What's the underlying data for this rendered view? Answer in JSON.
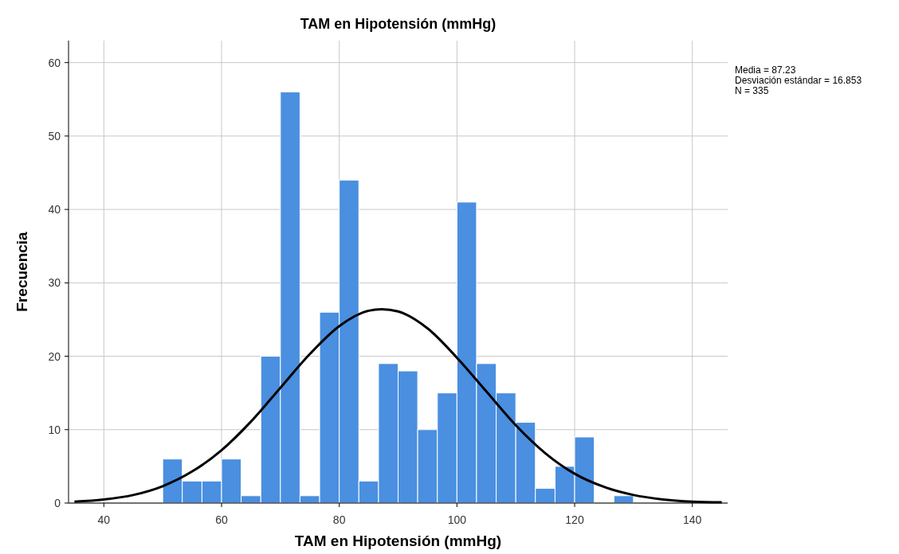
{
  "chart_data": {
    "type": "histogram",
    "title": "TAM en Hipotensión (mmHg)",
    "xlabel": "TAM en Hipotensión (mmHg)",
    "ylabel": "Frecuencia",
    "annotations": [
      "Media = 87.23",
      "Desviación estándar = 16.853",
      "N = 335"
    ],
    "xlim": [
      34,
      146
    ],
    "xticks": [
      40,
      60,
      80,
      100,
      120,
      140
    ],
    "ylim": [
      0,
      63
    ],
    "yticks": [
      0,
      10,
      20,
      30,
      40,
      50,
      60
    ],
    "grid": true,
    "series": [
      {
        "color": "#4a8fe0",
        "bins": [
          50,
          53.33,
          56.67,
          60,
          63.33,
          66.67,
          70,
          73.33,
          76.67,
          80,
          83.33,
          86.67,
          90,
          93.33,
          96.67,
          100,
          103.33,
          106.67,
          110,
          113.33,
          116.67,
          120,
          123.33,
          126.67,
          130
        ],
        "values": [
          6,
          3,
          3,
          6,
          1,
          20,
          56,
          1,
          26,
          44,
          3,
          19,
          18,
          10,
          15,
          41,
          19,
          15,
          11,
          2,
          5,
          9,
          0,
          1
        ]
      },
      {
        "type": "line",
        "color": "#000000",
        "marker": "none",
        "line_style": "solid",
        "x": [
          35,
          40,
          45,
          50,
          55,
          60,
          65,
          70,
          75,
          80,
          85,
          87.23,
          90,
          95,
          100,
          105,
          110,
          115,
          120,
          125,
          130,
          135,
          140,
          145
        ],
        "values": [
          0.2,
          0.5,
          1.1,
          2.3,
          4.3,
          7.2,
          11.1,
          15.7,
          20.3,
          24.1,
          26.2,
          26.4,
          26.1,
          23.8,
          19.8,
          15.2,
          10.6,
          6.8,
          4,
          2.2,
          1.1,
          0.5,
          0.2,
          0.1
        ]
      }
    ]
  }
}
